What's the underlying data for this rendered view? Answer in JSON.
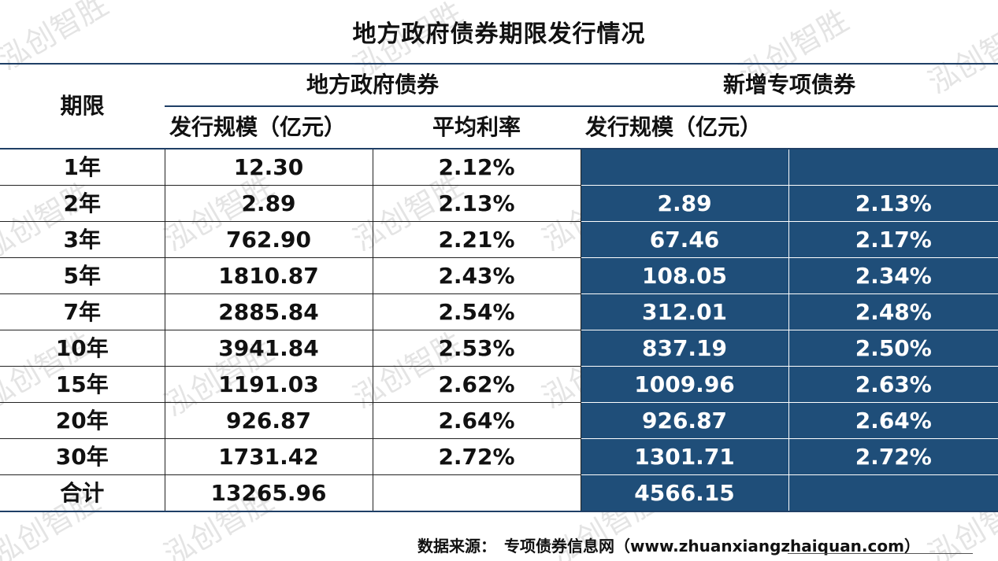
{
  "title": "地方政府债券期限发行情况",
  "header": {
    "period": "期限",
    "group_local": "地方政府债券",
    "group_special": "新增专项债券",
    "issue_scale": "发行规模（亿元）",
    "avg_rate": "平均利率",
    "special_issue_scale": "发行规模（亿元）"
  },
  "rows": [
    {
      "period": "1年",
      "local_scale": "12.30",
      "local_rate": "2.12%",
      "special_scale": "",
      "special_rate": ""
    },
    {
      "period": "2年",
      "local_scale": "2.89",
      "local_rate": "2.13%",
      "special_scale": "2.89",
      "special_rate": "2.13%"
    },
    {
      "period": "3年",
      "local_scale": "762.90",
      "local_rate": "2.21%",
      "special_scale": "67.46",
      "special_rate": "2.17%"
    },
    {
      "period": "5年",
      "local_scale": "1810.87",
      "local_rate": "2.43%",
      "special_scale": "108.05",
      "special_rate": "2.34%"
    },
    {
      "period": "7年",
      "local_scale": "2885.84",
      "local_rate": "2.54%",
      "special_scale": "312.01",
      "special_rate": "2.48%"
    },
    {
      "period": "10年",
      "local_scale": "3941.84",
      "local_rate": "2.53%",
      "special_scale": "837.19",
      "special_rate": "2.50%"
    },
    {
      "period": "15年",
      "local_scale": "1191.03",
      "local_rate": "2.62%",
      "special_scale": "1009.96",
      "special_rate": "2.63%"
    },
    {
      "period": "20年",
      "local_scale": "926.87",
      "local_rate": "2.64%",
      "special_scale": "926.87",
      "special_rate": "2.64%"
    },
    {
      "period": "30年",
      "local_scale": "1731.42",
      "local_rate": "2.72%",
      "special_scale": "1301.71",
      "special_rate": "2.72%"
    },
    {
      "period": "合计",
      "local_scale": "13265.96",
      "local_rate": "",
      "special_scale": "4566.15",
      "special_rate": ""
    }
  ],
  "source": {
    "label": "数据来源：",
    "text": "专项债券信息网（www.zhuanxiangzhaiquan.com）"
  },
  "watermark": "泓创智胜",
  "colors": {
    "accent_dark_blue": "#1f4e79",
    "header_line": "#1f3f66"
  }
}
